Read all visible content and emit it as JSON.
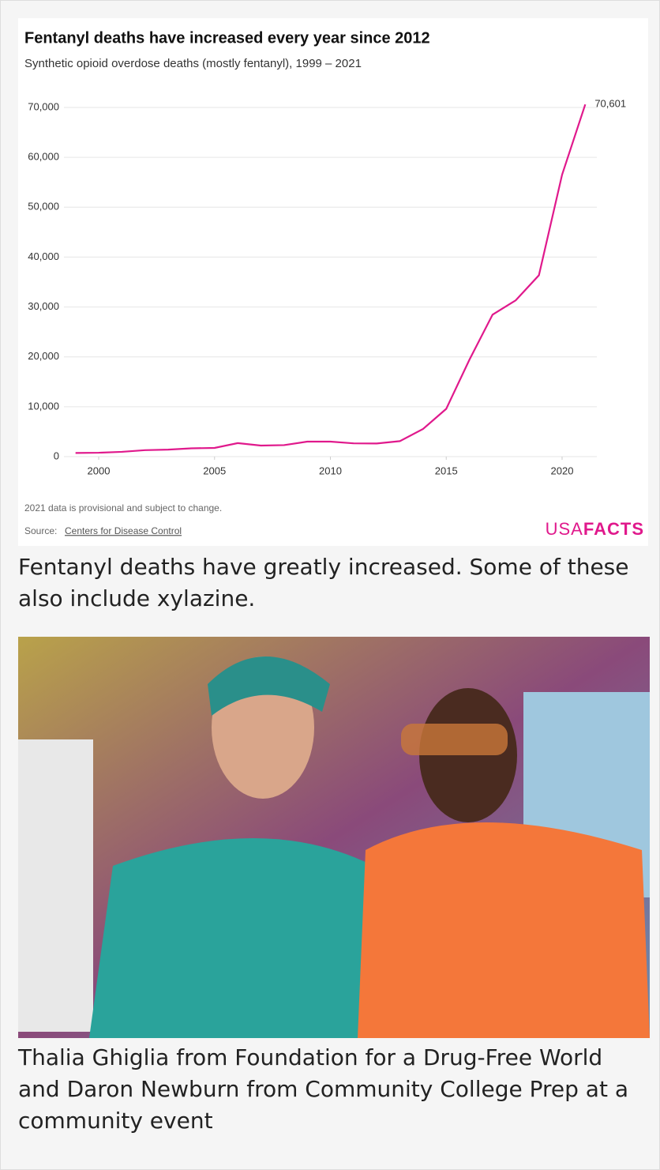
{
  "chart_data": {
    "type": "line",
    "title": "Fentanyl deaths have increased every year since 2012",
    "subtitle": "Synthetic opioid overdose deaths (mostly fentanyl), 1999 – 2021",
    "x": [
      1999,
      2000,
      2001,
      2002,
      2003,
      2004,
      2005,
      2006,
      2007,
      2008,
      2009,
      2010,
      2011,
      2012,
      2013,
      2014,
      2015,
      2016,
      2017,
      2018,
      2019,
      2020,
      2021
    ],
    "values": [
      730,
      782,
      957,
      1295,
      1400,
      1664,
      1742,
      2707,
      2213,
      2306,
      3007,
      3007,
      2666,
      2628,
      3105,
      5544,
      9580,
      19413,
      28466,
      31335,
      36359,
      56516,
      70601
    ],
    "value_labels": [
      null,
      null,
      null,
      null,
      null,
      null,
      null,
      null,
      null,
      null,
      null,
      null,
      null,
      null,
      null,
      null,
      null,
      null,
      null,
      null,
      null,
      null,
      "70,601"
    ],
    "color": "#e0198c",
    "xlim": [
      1998.5,
      2021.5
    ],
    "xticks": [
      2000,
      2005,
      2010,
      2015,
      2020
    ],
    "ylim": [
      0,
      70000
    ],
    "yticks": [
      0,
      {
        "value": 10000,
        "label": "10,000"
      },
      {
        "value": 20000,
        "label": "20,000"
      },
      {
        "value": 30000,
        "label": "30,000"
      },
      {
        "value": 40000,
        "label": "40,000"
      },
      {
        "value": 50000,
        "label": "50,000"
      },
      {
        "value": 60000,
        "label": "60,000"
      },
      {
        "value": 70000,
        "label": "70,000"
      }
    ],
    "grid": true,
    "note": "2021 data is provisional and subject to change.",
    "source_prefix": "Source:",
    "source": "Centers for Disease Control",
    "logo_light": "USA",
    "logo_bold": "FACTS"
  },
  "captions": [
    "Fentanyl deaths have greatly increased.  Some of these also include xylazine.",
    "Thalia Ghiglia from Foundation for a Drug-Free World and Daron Newburn from Community College Prep at a community event"
  ]
}
